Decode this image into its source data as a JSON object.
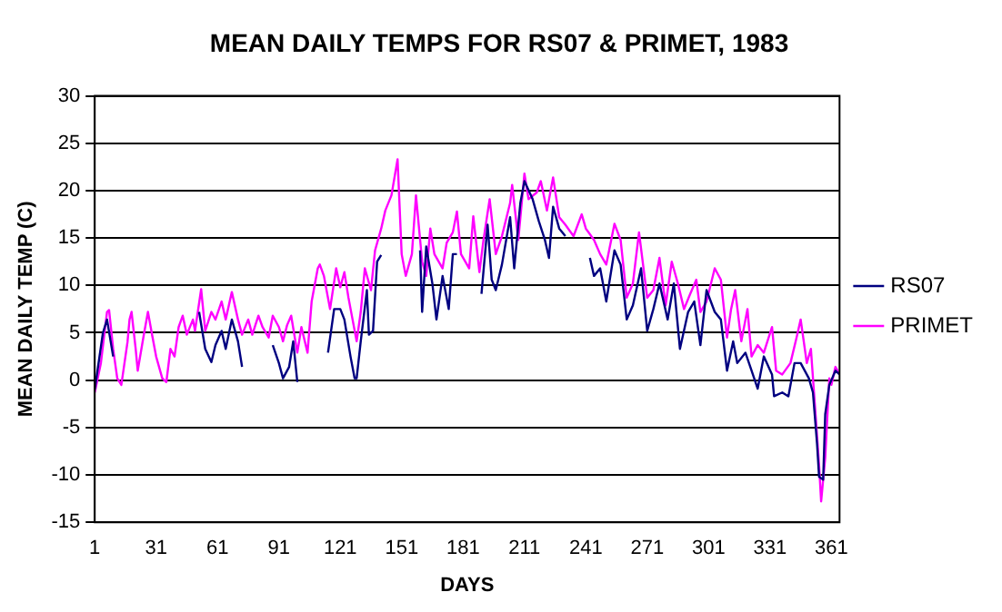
{
  "chart_data": {
    "type": "line",
    "title": "MEAN DAILY TEMPS FOR RS07 & PRIMET, 1983",
    "xlabel": "DAYS",
    "ylabel": "MEAN DAILY TEMP (C)",
    "xlim": [
      1,
      365
    ],
    "xticks": [
      1,
      31,
      61,
      91,
      121,
      151,
      181,
      211,
      241,
      271,
      301,
      331,
      361
    ],
    "ylim": [
      -15,
      30
    ],
    "yticks": [
      -15,
      -10,
      -5,
      0,
      5,
      10,
      15,
      20,
      25,
      30
    ],
    "grid": "y",
    "legend": "right",
    "marker": "none",
    "line_style": "solid",
    "series": [
      {
        "name": "RS07",
        "color": "#000080",
        "x": [
          1,
          5,
          7,
          10,
          11,
          52,
          55,
          58,
          60,
          63,
          65,
          68,
          71,
          73,
          74,
          88,
          91,
          93,
          96,
          98,
          100,
          101,
          115,
          118,
          121,
          123,
          126,
          128,
          129,
          131,
          134,
          135,
          137,
          139,
          141,
          142,
          160,
          161,
          163,
          166,
          168,
          171,
          174,
          176,
          178,
          179,
          190,
          193,
          195,
          197,
          200,
          204,
          206,
          209,
          211,
          215,
          218,
          221,
          223,
          225,
          228,
          231,
          232,
          243,
          245,
          248,
          251,
          255,
          258,
          261,
          264,
          268,
          271,
          274,
          277,
          281,
          284,
          287,
          291,
          294,
          297,
          300,
          304,
          307,
          310,
          313,
          315,
          319,
          322,
          325,
          328,
          332,
          333,
          337,
          340,
          343,
          346,
          350,
          352,
          354,
          355,
          357,
          358,
          360,
          363,
          365
        ],
        "values": [
          -1,
          5,
          6.4,
          2.5,
          null,
          7.2,
          3.3,
          1.9,
          3.7,
          5.2,
          3.3,
          6.4,
          4.1,
          1.4,
          null,
          3.7,
          1.8,
          0.2,
          1.4,
          4.1,
          -0.2,
          null,
          2.9,
          7.5,
          7.5,
          6.4,
          2.5,
          0.2,
          0.2,
          4.1,
          9.5,
          4.8,
          5.2,
          12.5,
          13.2,
          null,
          13.7,
          7.2,
          14.1,
          10.2,
          6.4,
          11,
          7.5,
          13.3,
          13.3,
          null,
          9.1,
          16.4,
          10.6,
          9.5,
          12.2,
          17.2,
          11.8,
          18.7,
          21,
          19.1,
          16.8,
          14.8,
          12.9,
          18.3,
          16,
          15.2,
          null,
          12.9,
          11,
          11.8,
          8.3,
          13.7,
          12.2,
          6.4,
          7.9,
          11.8,
          5.2,
          7.5,
          10.2,
          6.4,
          10.2,
          3.3,
          7.2,
          8.3,
          3.7,
          9.5,
          7.2,
          6.4,
          1,
          4.1,
          1.8,
          2.9,
          1,
          -0.9,
          2.5,
          0.6,
          -1.7,
          -1.3,
          -1.7,
          1.8,
          1.8,
          0.2,
          -1.3,
          -6.7,
          -10.2,
          -10.5,
          -3.6,
          -0.5,
          1,
          0.6
        ]
      },
      {
        "name": "PRIMET",
        "color": "#ff00ff",
        "x": [
          1,
          4,
          7,
          8,
          10,
          12,
          14,
          17,
          18,
          19,
          21,
          22,
          25,
          27,
          29,
          31,
          34,
          36,
          38,
          40,
          42,
          44,
          46,
          49,
          50,
          53,
          55,
          58,
          60,
          63,
          65,
          68,
          71,
          73,
          76,
          78,
          81,
          83,
          86,
          88,
          91,
          93,
          95,
          97,
          100,
          102,
          105,
          107,
          110,
          111,
          113,
          116,
          119,
          121,
          123,
          125,
          129,
          131,
          133,
          136,
          138,
          141,
          143,
          146,
          149,
          151,
          153,
          156,
          158,
          161,
          163,
          165,
          167,
          171,
          173,
          176,
          178,
          180,
          184,
          186,
          189,
          191,
          194,
          197,
          200,
          204,
          205,
          208,
          211,
          213,
          217,
          219,
          222,
          225,
          228,
          231,
          235,
          239,
          241,
          245,
          248,
          251,
          255,
          258,
          261,
          264,
          267,
          271,
          274,
          277,
          280,
          283,
          286,
          289,
          292,
          295,
          297,
          300,
          304,
          307,
          310,
          312,
          314,
          317,
          320,
          322,
          325,
          328,
          332,
          334,
          337,
          341,
          344,
          346,
          349,
          351,
          353,
          355,
          356,
          358,
          360,
          361,
          363,
          365
        ],
        "values": [
          -1.3,
          1.8,
          7.2,
          7.4,
          3.3,
          0.2,
          -0.5,
          4,
          6.4,
          7.2,
          3.3,
          1,
          4.8,
          7.2,
          4.8,
          2.5,
          0.2,
          -0.2,
          3.3,
          2.5,
          5.6,
          6.8,
          4.8,
          6.4,
          5.2,
          9.6,
          5.2,
          7.2,
          6.4,
          8.3,
          6.4,
          9.3,
          6.4,
          4.8,
          6.4,
          4.8,
          6.8,
          5.6,
          4.5,
          6.8,
          5.6,
          4.1,
          5.8,
          6.8,
          2.9,
          5.6,
          2.9,
          8.3,
          11.8,
          12.2,
          11,
          7.5,
          11.8,
          9.8,
          11.4,
          8.7,
          4.1,
          7.2,
          11.8,
          9.5,
          13.7,
          16,
          17.9,
          19.5,
          23.3,
          13.3,
          11,
          13.3,
          19.5,
          12.5,
          11,
          16,
          13.3,
          11.8,
          14.5,
          15.6,
          17.8,
          13.3,
          11.8,
          17.3,
          11.4,
          14.8,
          19.1,
          13.3,
          15.2,
          18.7,
          20.6,
          14.8,
          21.8,
          19.1,
          19.8,
          21,
          17.9,
          21.4,
          17.2,
          16.4,
          15.2,
          17.5,
          16,
          14.8,
          13.3,
          12.2,
          16.5,
          14.8,
          8.7,
          10.2,
          15.6,
          8.7,
          9.5,
          12.9,
          7.9,
          12.5,
          10.2,
          7.5,
          9.1,
          10.6,
          7.2,
          8.3,
          11.8,
          10.6,
          4.5,
          7.5,
          9.5,
          4.1,
          7.5,
          2.5,
          3.7,
          2.9,
          5.6,
          1,
          0.6,
          1.8,
          4.5,
          6.4,
          1.8,
          3.3,
          -2.8,
          -9,
          -12.8,
          -8.2,
          0.2,
          -0.5,
          1.4,
          0.6
        ]
      }
    ]
  }
}
